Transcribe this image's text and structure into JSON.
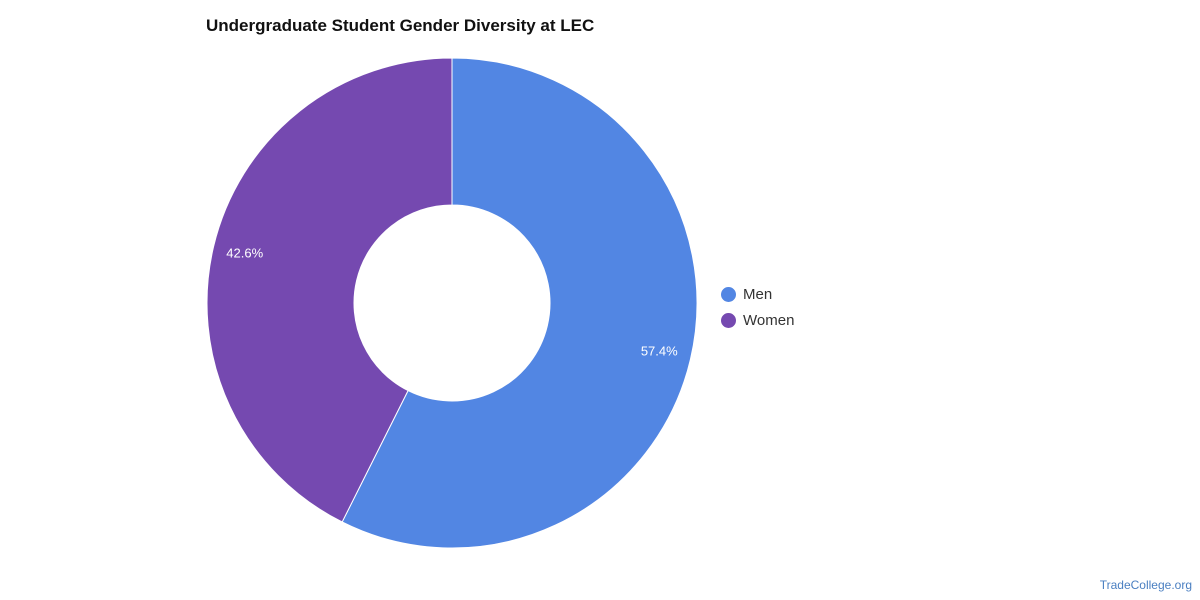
{
  "chart_data": {
    "type": "pie",
    "title": "Undergraduate Student Gender Diversity at LEC",
    "categories": [
      "Men",
      "Women"
    ],
    "values": [
      57.4,
      42.6
    ],
    "data_labels": [
      "57.4%",
      "42.6%"
    ],
    "colors": [
      "#5286e3",
      "#7549b0"
    ],
    "donut": true,
    "legend_position": "right"
  },
  "credit": "TradeCollege.org"
}
